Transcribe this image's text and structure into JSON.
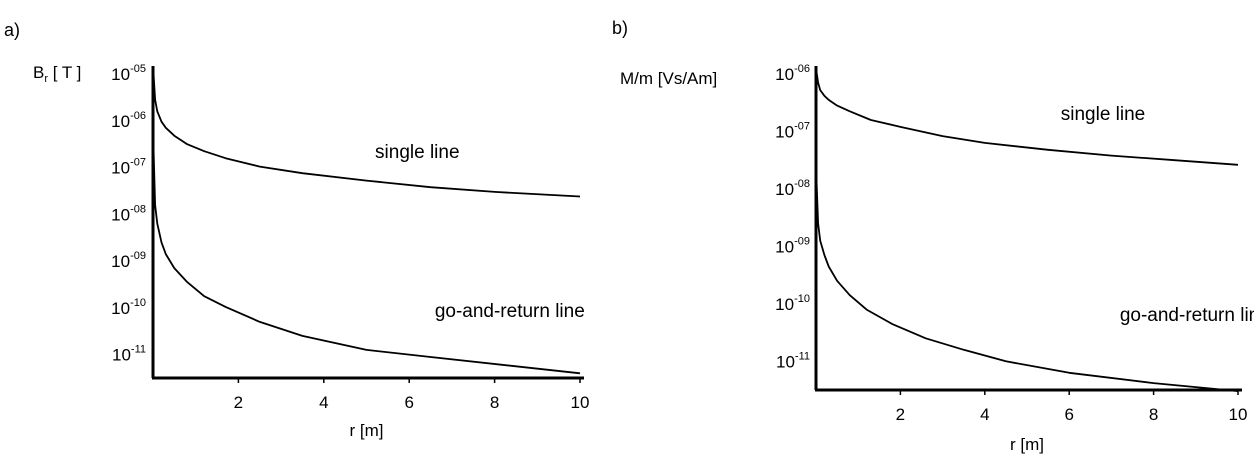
{
  "chart_data": [
    {
      "panel_label": "a)",
      "type": "line",
      "ylabel_parts": [
        "B",
        "r",
        " [ T ]"
      ],
      "xlabel": "r [m]",
      "xlim": [
        0,
        10
      ],
      "ylim_exp": [
        -11.5,
        -5
      ],
      "yscale": "log",
      "x_ticks": [
        {
          "value": 2,
          "label": "2"
        },
        {
          "value": 4,
          "label": "4"
        },
        {
          "value": 6,
          "label": "6"
        },
        {
          "value": 8,
          "label": "8"
        },
        {
          "value": 10,
          "label": "10"
        }
      ],
      "y_ticks": [
        {
          "exp": -5,
          "base": "10",
          "sup": "-05"
        },
        {
          "exp": -6,
          "base": "10",
          "sup": "-06"
        },
        {
          "exp": -7,
          "base": "10",
          "sup": "-07"
        },
        {
          "exp": -8,
          "base": "10",
          "sup": "-08"
        },
        {
          "exp": -9,
          "base": "10",
          "sup": "-09"
        },
        {
          "exp": -10,
          "base": "10",
          "sup": "-10"
        },
        {
          "exp": -11,
          "base": "10",
          "sup": "-11"
        }
      ],
      "series": [
        {
          "label": "single line",
          "label_at": {
            "x": 5.2,
            "exp": -6.8
          },
          "points": [
            [
              0.01,
              -4.95
            ],
            [
              0.05,
              -5.55
            ],
            [
              0.1,
              -5.8
            ],
            [
              0.2,
              -6.02
            ],
            [
              0.3,
              -6.15
            ],
            [
              0.5,
              -6.32
            ],
            [
              0.8,
              -6.5
            ],
            [
              1.2,
              -6.65
            ],
            [
              1.7,
              -6.8
            ],
            [
              2.5,
              -6.98
            ],
            [
              3.5,
              -7.12
            ],
            [
              5,
              -7.28
            ],
            [
              6.5,
              -7.42
            ],
            [
              8,
              -7.52
            ],
            [
              10,
              -7.62
            ]
          ]
        },
        {
          "label": "go-and-return line",
          "label_at": {
            "x": 6.6,
            "exp": -10.2
          },
          "points": [
            [
              0.01,
              -6.5
            ],
            [
              0.05,
              -7.8
            ],
            [
              0.1,
              -8.2
            ],
            [
              0.2,
              -8.6
            ],
            [
              0.3,
              -8.85
            ],
            [
              0.5,
              -9.15
            ],
            [
              0.8,
              -9.45
            ],
            [
              1.2,
              -9.75
            ],
            [
              1.7,
              -9.98
            ],
            [
              2.5,
              -10.3
            ],
            [
              3.5,
              -10.6
            ],
            [
              5,
              -10.9
            ],
            [
              6.5,
              -11.05
            ],
            [
              8.5,
              -11.25
            ],
            [
              10,
              -11.4
            ]
          ]
        }
      ]
    },
    {
      "panel_label": "b)",
      "type": "line",
      "ylabel_parts": [
        "M/m [Vs/Am]"
      ],
      "xlabel": "r [m]",
      "xlim": [
        0,
        10
      ],
      "ylim_exp": [
        -11.5,
        -6
      ],
      "yscale": "log",
      "x_ticks": [
        {
          "value": 2,
          "label": "2"
        },
        {
          "value": 4,
          "label": "4"
        },
        {
          "value": 6,
          "label": "6"
        },
        {
          "value": 8,
          "label": "8"
        },
        {
          "value": 10,
          "label": "10"
        }
      ],
      "y_ticks": [
        {
          "exp": -6,
          "base": "10",
          "sup": "-06"
        },
        {
          "exp": -7,
          "base": "10",
          "sup": "-07"
        },
        {
          "exp": -8,
          "base": "10",
          "sup": "-08"
        },
        {
          "exp": -9,
          "base": "10",
          "sup": "-09"
        },
        {
          "exp": -10,
          "base": "10",
          "sup": "-10"
        },
        {
          "exp": -11,
          "base": "10",
          "sup": "-11"
        }
      ],
      "series": [
        {
          "label": "single line",
          "label_at": {
            "x": 5.8,
            "exp": -6.8
          },
          "points": [
            [
              0.01,
              -5.95
            ],
            [
              0.05,
              -6.15
            ],
            [
              0.1,
              -6.28
            ],
            [
              0.2,
              -6.38
            ],
            [
              0.3,
              -6.45
            ],
            [
              0.5,
              -6.55
            ],
            [
              0.8,
              -6.65
            ],
            [
              1.3,
              -6.8
            ],
            [
              2,
              -6.92
            ],
            [
              3,
              -7.08
            ],
            [
              4,
              -7.2
            ],
            [
              5.5,
              -7.32
            ],
            [
              7,
              -7.42
            ],
            [
              8.5,
              -7.5
            ],
            [
              10,
              -7.58
            ]
          ]
        },
        {
          "label": "go-and-return line",
          "label_at": {
            "x": 7.2,
            "exp": -10.3
          },
          "points": [
            [
              0.01,
              -7.8
            ],
            [
              0.05,
              -8.6
            ],
            [
              0.1,
              -8.9
            ],
            [
              0.2,
              -9.15
            ],
            [
              0.3,
              -9.35
            ],
            [
              0.5,
              -9.6
            ],
            [
              0.8,
              -9.85
            ],
            [
              1.2,
              -10.1
            ],
            [
              1.8,
              -10.35
            ],
            [
              2.6,
              -10.6
            ],
            [
              3.5,
              -10.8
            ],
            [
              4.5,
              -11
            ],
            [
              6,
              -11.2
            ],
            [
              8,
              -11.38
            ],
            [
              10,
              -11.52
            ]
          ]
        }
      ]
    }
  ]
}
